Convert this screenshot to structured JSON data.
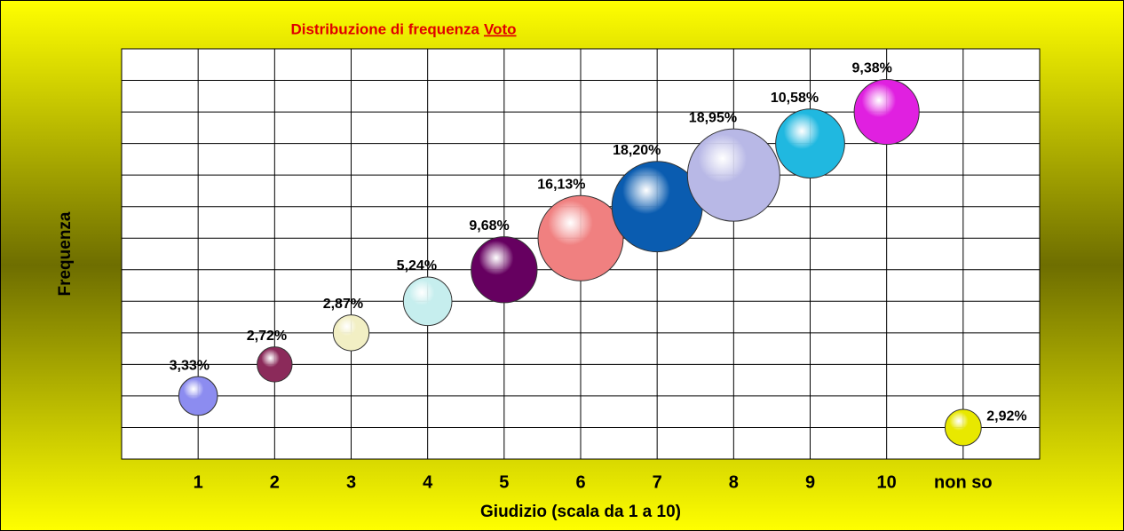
{
  "chart_data": {
    "type": "bubble",
    "title": [
      "Distribuzione di frequenza",
      "Voto"
    ],
    "x_label": "Giudizio (scala da 1 a 10)",
    "y_label": "Frequenza",
    "categories": [
      "1",
      "2",
      "3",
      "4",
      "5",
      "6",
      "7",
      "8",
      "9",
      "10",
      "non so"
    ],
    "series": [
      {
        "values": [
          1,
          2,
          3,
          4,
          5,
          6,
          7,
          8,
          9,
          10,
          0
        ],
        "sizes": [
          3.33,
          2.72,
          2.87,
          5.24,
          9.68,
          16.13,
          18.2,
          18.95,
          10.58,
          9.38,
          2.92
        ],
        "value_labels": [
          "3,33%",
          "2,72%",
          "2,87%",
          "5,24%",
          "9,68%",
          "16,13%",
          "18,20%",
          "18,95%",
          "10,58%",
          "9,38%",
          "2,92%"
        ],
        "colors": [
          "#8c8cf0",
          "#8b2a5a",
          "#f2efc4",
          "#c6eeee",
          "#660060",
          "#f08080",
          "#0a5cb0",
          "#b8b8e6",
          "#20b8e0",
          "#e020e0",
          "#e8e800"
        ]
      }
    ],
    "ylim": [
      -1,
      12
    ],
    "yticks": [
      -1,
      0,
      1,
      2,
      3,
      4,
      5,
      6,
      7,
      8,
      9,
      10,
      11,
      12
    ],
    "grid": true
  }
}
